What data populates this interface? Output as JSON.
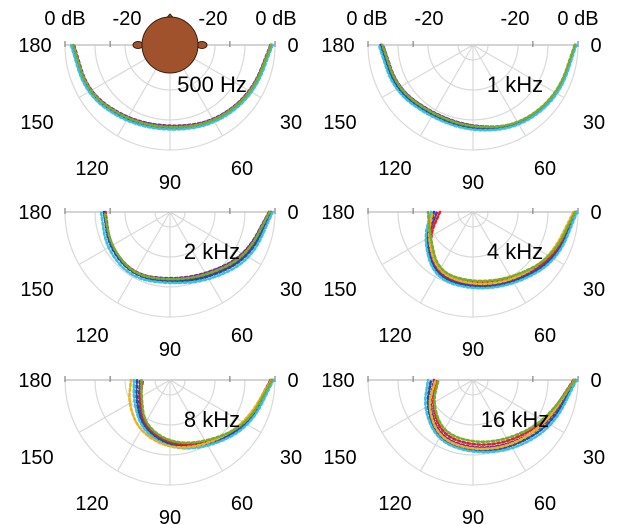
{
  "figure": {
    "dB_labels": [
      "0 dB",
      "-20",
      "-20",
      "0 dB"
    ],
    "angle_labels": [
      "180",
      "150",
      "120",
      "90",
      "60",
      "30",
      "0"
    ],
    "head_icon": "head-icon"
  },
  "chart_data": [
    {
      "type": "polar-line",
      "title": "500 Hz",
      "theta_unit": "degrees",
      "theta_range": [
        0,
        180
      ],
      "theta_ticks": [
        0,
        30,
        60,
        90,
        120,
        150,
        180
      ],
      "r_label": "dB",
      "r_range": [
        -35,
        0
      ],
      "r_ticks": [
        0,
        -10,
        -20,
        -30
      ],
      "grid": true,
      "theta": [
        0,
        30,
        60,
        90,
        120,
        150,
        180
      ],
      "series": [
        {
          "color": "#7b2d8e",
          "values": [
            -1.5,
            -3.5,
            -5.5,
            -7.5,
            -6.5,
            -3.5,
            -3.0
          ]
        },
        {
          "color": "#d62728",
          "values": [
            -1.0,
            -2.8,
            -5.0,
            -7.0,
            -6.0,
            -3.0,
            -2.5
          ]
        },
        {
          "color": "#1f4e9c",
          "values": [
            -1.2,
            -3.0,
            -4.8,
            -6.6,
            -5.6,
            -2.8,
            -2.4
          ]
        },
        {
          "color": "#40bfe0",
          "values": [
            -0.8,
            -2.5,
            -4.4,
            -6.2,
            -5.2,
            -2.5,
            -2.0
          ]
        },
        {
          "color": "#77ac30",
          "values": [
            -1.3,
            -3.2,
            -5.2,
            -7.0,
            -6.2,
            -3.3,
            -2.8
          ]
        }
      ]
    },
    {
      "type": "polar-line",
      "title": "1 kHz",
      "theta_unit": "degrees",
      "theta_range": [
        0,
        180
      ],
      "theta_ticks": [
        0,
        30,
        60,
        90,
        120,
        150,
        180
      ],
      "r_label": "dB",
      "r_range": [
        -35,
        0
      ],
      "r_ticks": [
        0,
        -10,
        -20,
        -30
      ],
      "grid": true,
      "theta": [
        0,
        30,
        60,
        90,
        120,
        150,
        180
      ],
      "series": [
        {
          "color": "#7b2d8e",
          "values": [
            -1.0,
            -2.2,
            -4.0,
            -7.5,
            -8.5,
            -6.0,
            -5.0
          ]
        },
        {
          "color": "#d62728",
          "values": [
            -1.0,
            -2.0,
            -4.0,
            -7.0,
            -8.0,
            -5.5,
            -4.5
          ]
        },
        {
          "color": "#1f4e9c",
          "values": [
            -0.8,
            -1.8,
            -3.6,
            -6.5,
            -7.6,
            -5.0,
            -4.2
          ]
        },
        {
          "color": "#40bfe0",
          "values": [
            -0.6,
            -1.5,
            -3.3,
            -6.0,
            -7.0,
            -4.5,
            -3.6
          ]
        },
        {
          "color": "#77ac30",
          "values": [
            -1.1,
            -2.3,
            -4.2,
            -7.2,
            -8.2,
            -5.8,
            -4.8
          ]
        }
      ]
    },
    {
      "type": "polar-line",
      "title": "2 kHz",
      "theta_unit": "degrees",
      "theta_range": [
        0,
        180
      ],
      "theta_ticks": [
        0,
        30,
        60,
        90,
        120,
        150,
        180
      ],
      "r_label": "dB",
      "r_range": [
        -35,
        0
      ],
      "r_ticks": [
        0,
        -10,
        -20,
        -30
      ],
      "grid": true,
      "theta": [
        0,
        30,
        60,
        90,
        120,
        150,
        180
      ],
      "series": [
        {
          "color": "#7b2d8e",
          "values": [
            -2.0,
            -6.0,
            -11.0,
            -12.5,
            -11.0,
            -12.0,
            -13.0
          ]
        },
        {
          "color": "#d62728",
          "values": [
            -1.5,
            -5.0,
            -10.0,
            -12.0,
            -11.0,
            -12.0,
            -13.5
          ]
        },
        {
          "color": "#1f4e9c",
          "values": [
            -1.2,
            -4.5,
            -9.5,
            -11.5,
            -10.5,
            -11.5,
            -13.0
          ]
        },
        {
          "color": "#40bfe0",
          "values": [
            -0.8,
            -3.5,
            -8.5,
            -11.0,
            -9.5,
            -10.5,
            -12.0
          ]
        },
        {
          "color": "#77ac30",
          "values": [
            -1.8,
            -5.5,
            -10.5,
            -12.2,
            -10.8,
            -12.2,
            -13.2
          ]
        }
      ]
    },
    {
      "type": "polar-line",
      "title": "4 kHz",
      "theta_unit": "degrees",
      "theta_range": [
        0,
        180
      ],
      "theta_ticks": [
        0,
        30,
        60,
        90,
        120,
        150,
        180
      ],
      "r_label": "dB",
      "r_range": [
        -35,
        0
      ],
      "r_ticks": [
        0,
        -10,
        -20,
        -30
      ],
      "grid": true,
      "theta": [
        0,
        30,
        60,
        90,
        120,
        150,
        180
      ],
      "series": [
        {
          "color": "#7b2d8e",
          "values": [
            -0.5,
            -3.5,
            -8.0,
            -10.0,
            -10.5,
            -17.0,
            -23.0
          ]
        },
        {
          "color": "#d62728",
          "values": [
            -1.0,
            -4.0,
            -9.0,
            -11.0,
            -11.0,
            -18.0,
            -24.0
          ]
        },
        {
          "color": "#1f4e9c",
          "values": [
            -0.5,
            -3.0,
            -7.5,
            -9.5,
            -10.0,
            -16.5,
            -22.0
          ]
        },
        {
          "color": "#40bfe0",
          "values": [
            -0.3,
            -2.5,
            -7.0,
            -9.0,
            -9.5,
            -16.0,
            -21.0
          ]
        },
        {
          "color": "#edb120",
          "values": [
            -1.5,
            -5.0,
            -8.5,
            -10.5,
            -11.5,
            -17.5,
            -21.5
          ]
        },
        {
          "color": "#77ac30",
          "values": [
            -1.0,
            -4.5,
            -9.5,
            -11.5,
            -12.0,
            -18.5,
            -20.0
          ]
        }
      ]
    },
    {
      "type": "polar-line",
      "title": "8 kHz",
      "theta_unit": "degrees",
      "theta_range": [
        0,
        180
      ],
      "theta_ticks": [
        0,
        30,
        60,
        90,
        120,
        150,
        180
      ],
      "r_label": "dB",
      "r_range": [
        -35,
        0
      ],
      "r_ticks": [
        0,
        -10,
        -20,
        -30
      ],
      "grid": true,
      "theta": [
        0,
        30,
        60,
        90,
        120,
        150,
        180
      ],
      "series": [
        {
          "color": "#7b2d8e",
          "values": [
            -1.0,
            -5.0,
            -10.0,
            -13.0,
            -17.0,
            -23.0,
            -25.0
          ]
        },
        {
          "color": "#d62728",
          "values": [
            -1.5,
            -5.5,
            -10.5,
            -13.5,
            -17.5,
            -23.5,
            -26.0
          ]
        },
        {
          "color": "#1f4e9c",
          "values": [
            -0.8,
            -4.5,
            -9.5,
            -12.5,
            -16.5,
            -22.0,
            -24.0
          ]
        },
        {
          "color": "#40bfe0",
          "values": [
            -0.5,
            -4.0,
            -9.0,
            -12.0,
            -16.0,
            -21.0,
            -23.0
          ]
        },
        {
          "color": "#edb120",
          "values": [
            -1.2,
            -6.0,
            -10.0,
            -12.0,
            -15.0,
            -19.0,
            -22.0
          ]
        },
        {
          "color": "#77ac30",
          "values": [
            -1.0,
            -5.2,
            -11.0,
            -14.0,
            -18.0,
            -24.0,
            -25.5
          ]
        }
      ]
    },
    {
      "type": "polar-line",
      "title": "16 kHz",
      "theta_unit": "degrees",
      "theta_range": [
        0,
        180
      ],
      "theta_ticks": [
        0,
        30,
        60,
        90,
        120,
        150,
        180
      ],
      "r_label": "dB",
      "r_range": [
        -35,
        0
      ],
      "r_ticks": [
        0,
        -10,
        -20,
        -30
      ],
      "grid": true,
      "theta": [
        0,
        30,
        60,
        90,
        120,
        150,
        180
      ],
      "series": [
        {
          "color": "#7b2d8e",
          "values": [
            -1.0,
            -6.0,
            -10.0,
            -12.0,
            -13.0,
            -18.0,
            -22.0
          ]
        },
        {
          "color": "#d62728",
          "values": [
            -1.5,
            -7.0,
            -11.0,
            -13.0,
            -14.0,
            -19.0,
            -23.0
          ]
        },
        {
          "color": "#1f4e9c",
          "values": [
            -0.8,
            -5.0,
            -9.0,
            -11.0,
            -12.0,
            -17.0,
            -21.0
          ]
        },
        {
          "color": "#40bfe0",
          "values": [
            -0.5,
            -4.0,
            -8.0,
            -10.5,
            -11.5,
            -16.0,
            -20.0
          ]
        },
        {
          "color": "#edb120",
          "values": [
            -1.2,
            -6.5,
            -9.5,
            -11.5,
            -12.5,
            -17.5,
            -22.5
          ]
        },
        {
          "color": "#77ac30",
          "values": [
            -1.0,
            -7.5,
            -12.0,
            -14.0,
            -15.0,
            -19.5,
            -23.5
          ]
        }
      ]
    }
  ]
}
